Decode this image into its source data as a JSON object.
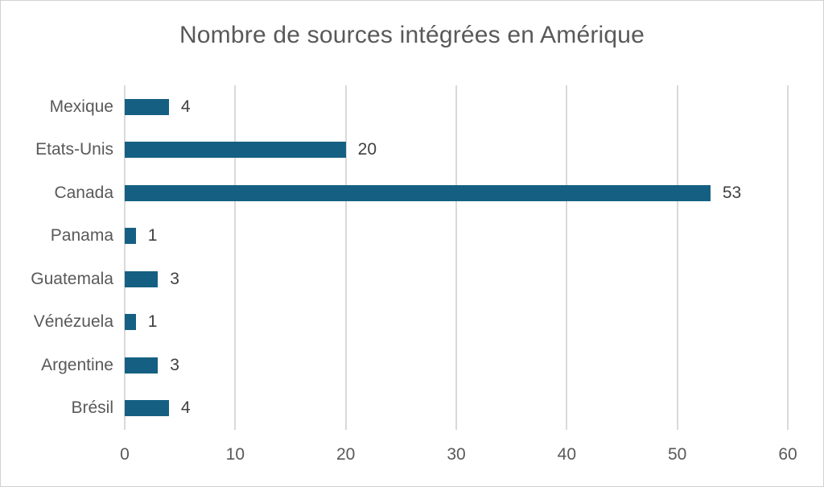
{
  "chart_data": {
    "type": "bar",
    "orientation": "horizontal",
    "title": "Nombre de sources intégrées en Amérique",
    "categories": [
      "Mexique",
      "Etats-Unis",
      "Canada",
      "Panama",
      "Guatemala",
      "Vénézuela",
      "Argentine",
      "Brésil"
    ],
    "values": [
      4,
      20,
      53,
      1,
      3,
      1,
      3,
      4
    ],
    "data_labels": [
      4,
      20,
      53,
      1,
      3,
      1,
      3,
      4
    ],
    "xlabel": "",
    "ylabel": "",
    "xlim": [
      0,
      60
    ],
    "x_ticks": [
      0,
      10,
      20,
      30,
      40,
      50,
      60
    ],
    "grid": "vertical-only",
    "legend": "none",
    "colors": {
      "bar": "#156082",
      "title": "#595959",
      "axis_text": "#595959",
      "value_text": "#404040",
      "gridline": "#d9d9d9",
      "frame_border": "#d2d2d2"
    }
  }
}
